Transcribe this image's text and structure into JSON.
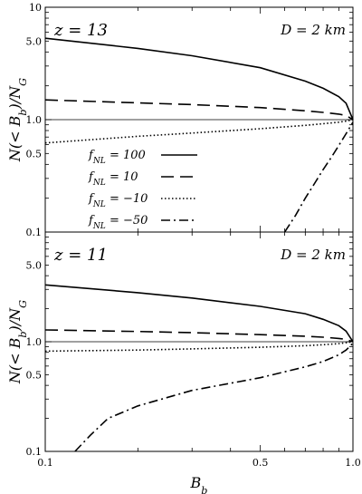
{
  "chart_data": [
    {
      "type": "line",
      "panel": "top",
      "ylabel": "N(< B_b)/N_G",
      "xlim": [
        0.1,
        1.0
      ],
      "ylim": [
        0.1,
        10
      ],
      "yscale": "log",
      "xscale": "log",
      "x_ticks": [
        0.1,
        0.5,
        1.0
      ],
      "y_ticks": [
        "0.1",
        "0.5",
        "1.0",
        "5.0",
        "10"
      ],
      "annotation_left": "z = 13",
      "annotation_right": "D = 2  km",
      "reference_line": 1.0,
      "legend_position": "lower-center",
      "series": [
        {
          "name": "f_NL = 100",
          "style": "solid",
          "x": [
            0.1,
            0.2,
            0.3,
            0.5,
            0.7,
            0.8,
            0.9,
            0.95,
            1.0
          ],
          "y": [
            5.3,
            4.3,
            3.7,
            2.9,
            2.2,
            1.9,
            1.6,
            1.4,
            1.0
          ]
        },
        {
          "name": "f_NL = 10",
          "style": "dashed",
          "x": [
            0.1,
            0.2,
            0.3,
            0.5,
            0.7,
            0.8,
            0.9,
            0.95,
            1.0
          ],
          "y": [
            1.5,
            1.41,
            1.36,
            1.28,
            1.2,
            1.16,
            1.12,
            1.09,
            1.0
          ]
        },
        {
          "name": "f_NL = −10",
          "style": "dotted",
          "x": [
            0.1,
            0.2,
            0.3,
            0.5,
            0.7,
            0.8,
            0.9,
            0.95,
            1.0
          ],
          "y": [
            0.62,
            0.71,
            0.76,
            0.83,
            0.89,
            0.92,
            0.95,
            0.97,
            1.0
          ]
        },
        {
          "name": "f_NL = −50",
          "style": "dashdot",
          "x": [
            0.6,
            0.65,
            0.7,
            0.75,
            0.8,
            0.85,
            0.9,
            0.95,
            1.0
          ],
          "y": [
            0.1,
            0.14,
            0.2,
            0.27,
            0.36,
            0.46,
            0.59,
            0.75,
            0.95
          ]
        }
      ]
    },
    {
      "type": "line",
      "panel": "bottom",
      "ylabel": "N(< B_b)/N_G",
      "xlabel": "B_b",
      "xlim": [
        0.1,
        1.0
      ],
      "ylim": [
        0.1,
        10
      ],
      "yscale": "log",
      "xscale": "log",
      "x_ticks": [
        "0.1",
        "0.5",
        "1.0"
      ],
      "y_ticks": [
        "0.1",
        "0.5",
        "1.0",
        "5.0"
      ],
      "annotation_left": "z = 11",
      "annotation_right": "D = 2  km",
      "reference_line": 1.0,
      "series": [
        {
          "name": "f_NL = 100",
          "style": "solid",
          "x": [
            0.1,
            0.2,
            0.3,
            0.5,
            0.7,
            0.8,
            0.9,
            0.95,
            1.0
          ],
          "y": [
            3.3,
            2.8,
            2.5,
            2.1,
            1.8,
            1.6,
            1.4,
            1.25,
            1.0
          ]
        },
        {
          "name": "f_NL = 10",
          "style": "dashed",
          "x": [
            0.1,
            0.2,
            0.3,
            0.5,
            0.7,
            0.8,
            0.9,
            0.95,
            1.0
          ],
          "y": [
            1.28,
            1.24,
            1.21,
            1.16,
            1.12,
            1.1,
            1.07,
            1.05,
            1.0
          ]
        },
        {
          "name": "f_NL = −10",
          "style": "dotted",
          "x": [
            0.1,
            0.2,
            0.3,
            0.5,
            0.7,
            0.8,
            0.9,
            0.95,
            1.0
          ],
          "y": [
            0.82,
            0.84,
            0.86,
            0.89,
            0.92,
            0.94,
            0.96,
            0.98,
            1.0
          ]
        },
        {
          "name": "f_NL = −50",
          "style": "dashdot",
          "x": [
            0.125,
            0.14,
            0.16,
            0.2,
            0.3,
            0.5,
            0.7,
            0.8,
            0.9,
            0.95,
            1.0
          ],
          "y": [
            0.1,
            0.14,
            0.2,
            0.26,
            0.36,
            0.47,
            0.59,
            0.66,
            0.76,
            0.84,
            0.97
          ]
        }
      ]
    }
  ]
}
